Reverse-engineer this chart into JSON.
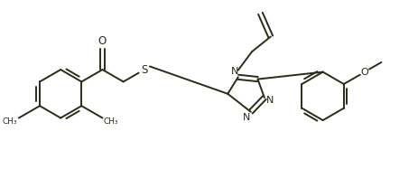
{
  "bg_color": "#ffffff",
  "line_color": "#2b2b18",
  "fig_width": 4.63,
  "fig_height": 1.87,
  "dpi": 100,
  "lw": 1.4,
  "xlim": [
    0,
    9.0
  ],
  "ylim": [
    0,
    3.6
  ]
}
